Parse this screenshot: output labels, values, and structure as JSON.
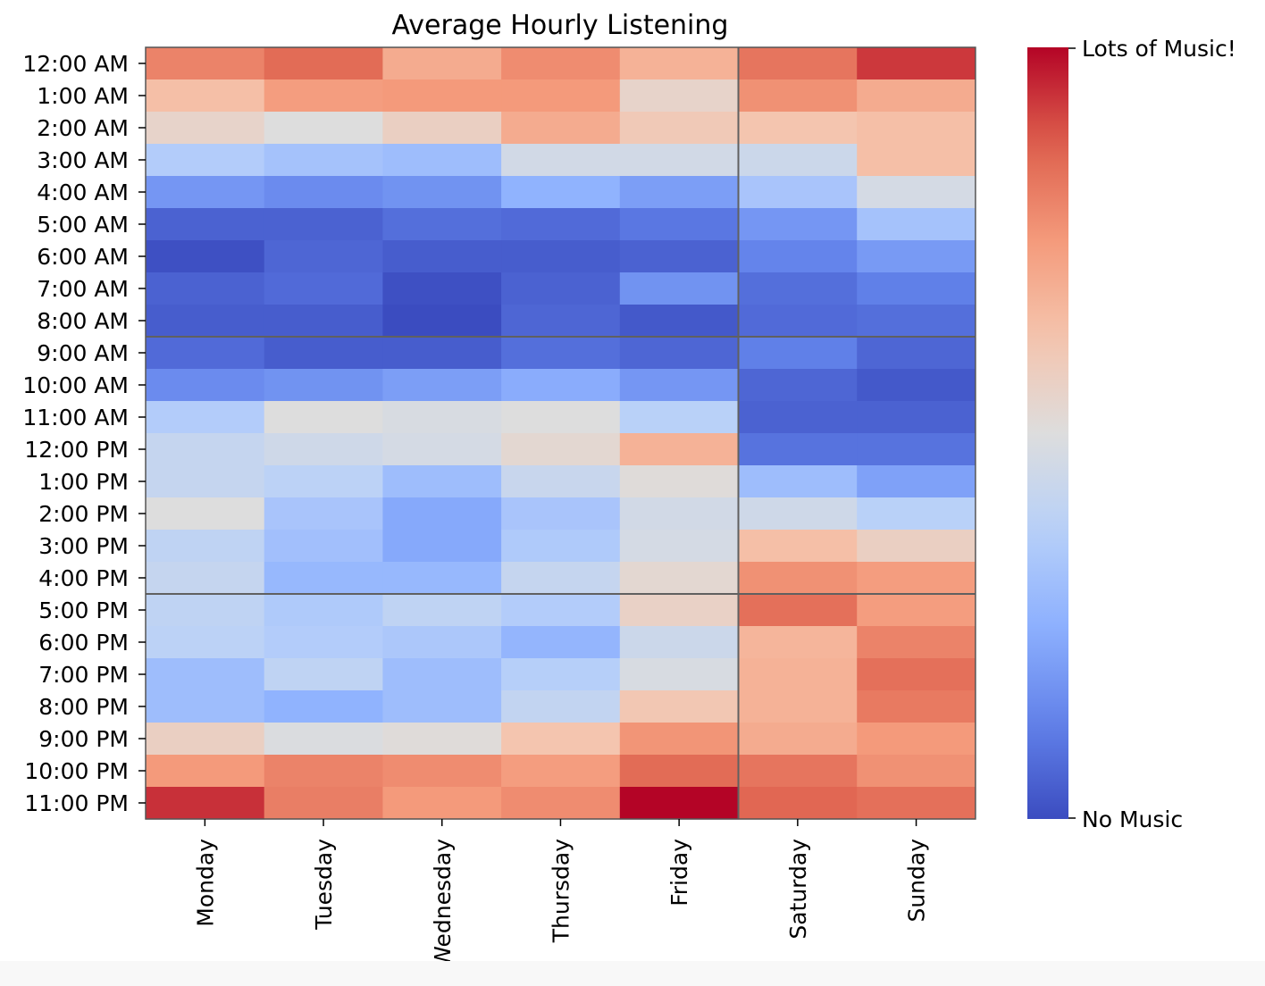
{
  "chart_data": {
    "type": "heatmap",
    "title": "Average Hourly Listening",
    "colormap": "coolwarm",
    "colorbar": {
      "max_label": "Lots of Music!",
      "min_label": "No Music",
      "range": [
        0,
        1
      ]
    },
    "x_categories": [
      "Monday",
      "Tuesday",
      "Wednesday",
      "Thursday",
      "Friday",
      "Saturday",
      "Sunday"
    ],
    "y_categories": [
      "12:00 AM",
      "1:00 AM",
      "2:00 AM",
      "3:00 AM",
      "4:00 AM",
      "5:00 AM",
      "6:00 AM",
      "7:00 AM",
      "8:00 AM",
      "9:00 AM",
      "10:00 AM",
      "11:00 AM",
      "12:00 PM",
      "1:00 PM",
      "2:00 PM",
      "3:00 PM",
      "4:00 PM",
      "5:00 PM",
      "6:00 PM",
      "7:00 PM",
      "8:00 PM",
      "9:00 PM",
      "10:00 PM",
      "11:00 PM"
    ],
    "values": [
      [
        0.8,
        0.85,
        0.7,
        0.78,
        0.68,
        0.83,
        0.93
      ],
      [
        0.64,
        0.74,
        0.75,
        0.75,
        0.55,
        0.77,
        0.7
      ],
      [
        0.55,
        0.5,
        0.57,
        0.7,
        0.6,
        0.62,
        0.64
      ],
      [
        0.36,
        0.32,
        0.3,
        0.46,
        0.46,
        0.44,
        0.64
      ],
      [
        0.18,
        0.15,
        0.17,
        0.26,
        0.2,
        0.33,
        0.47
      ],
      [
        0.05,
        0.05,
        0.08,
        0.07,
        0.1,
        0.18,
        0.32
      ],
      [
        0.01,
        0.06,
        0.04,
        0.04,
        0.05,
        0.13,
        0.19
      ],
      [
        0.05,
        0.07,
        0.01,
        0.05,
        0.17,
        0.08,
        0.12
      ],
      [
        0.04,
        0.04,
        0.0,
        0.06,
        0.03,
        0.07,
        0.08
      ],
      [
        0.07,
        0.04,
        0.04,
        0.08,
        0.06,
        0.12,
        0.06
      ],
      [
        0.15,
        0.17,
        0.2,
        0.24,
        0.18,
        0.06,
        0.03
      ],
      [
        0.36,
        0.5,
        0.48,
        0.5,
        0.38,
        0.05,
        0.05
      ],
      [
        0.42,
        0.45,
        0.47,
        0.53,
        0.68,
        0.09,
        0.09
      ],
      [
        0.42,
        0.39,
        0.3,
        0.43,
        0.51,
        0.3,
        0.21
      ],
      [
        0.5,
        0.33,
        0.23,
        0.33,
        0.46,
        0.45,
        0.38
      ],
      [
        0.4,
        0.31,
        0.23,
        0.35,
        0.47,
        0.64,
        0.57
      ],
      [
        0.42,
        0.28,
        0.28,
        0.42,
        0.53,
        0.77,
        0.74
      ],
      [
        0.4,
        0.35,
        0.4,
        0.36,
        0.56,
        0.84,
        0.74
      ],
      [
        0.39,
        0.36,
        0.34,
        0.27,
        0.44,
        0.67,
        0.8
      ],
      [
        0.3,
        0.4,
        0.3,
        0.37,
        0.48,
        0.68,
        0.84
      ],
      [
        0.3,
        0.26,
        0.3,
        0.41,
        0.61,
        0.68,
        0.82
      ],
      [
        0.57,
        0.49,
        0.51,
        0.62,
        0.76,
        0.7,
        0.75
      ],
      [
        0.75,
        0.8,
        0.78,
        0.74,
        0.85,
        0.83,
        0.77
      ],
      [
        0.94,
        0.81,
        0.75,
        0.78,
        1.0,
        0.86,
        0.84
      ]
    ],
    "separators": {
      "after_column": 5,
      "after_rows": [
        9,
        17
      ]
    }
  }
}
